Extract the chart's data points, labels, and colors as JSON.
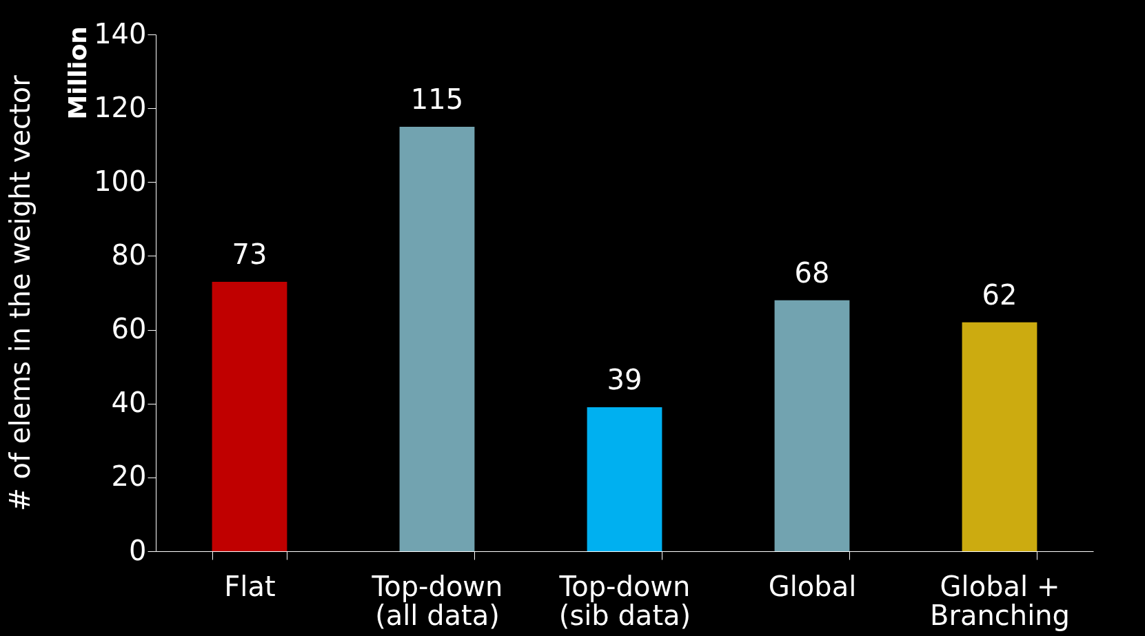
{
  "chart_data": {
    "type": "bar",
    "ylabel": "# of elems in the weight vector",
    "annotations": [
      "Million"
    ],
    "categories": [
      "Flat",
      "Top-down\n(all data)",
      "Top-down\n(sib data)",
      "Global",
      "Global +\nBranching"
    ],
    "values": [
      73,
      115,
      39,
      68,
      62
    ],
    "colors": [
      "#c00000",
      "#72a3b0",
      "#00b0f0",
      "#72a3b0",
      "#ccab10"
    ],
    "ylim": [
      0,
      140
    ],
    "yticks": [
      0,
      20,
      40,
      60,
      80,
      100,
      120,
      140
    ],
    "grid": false,
    "data_labels": true
  }
}
